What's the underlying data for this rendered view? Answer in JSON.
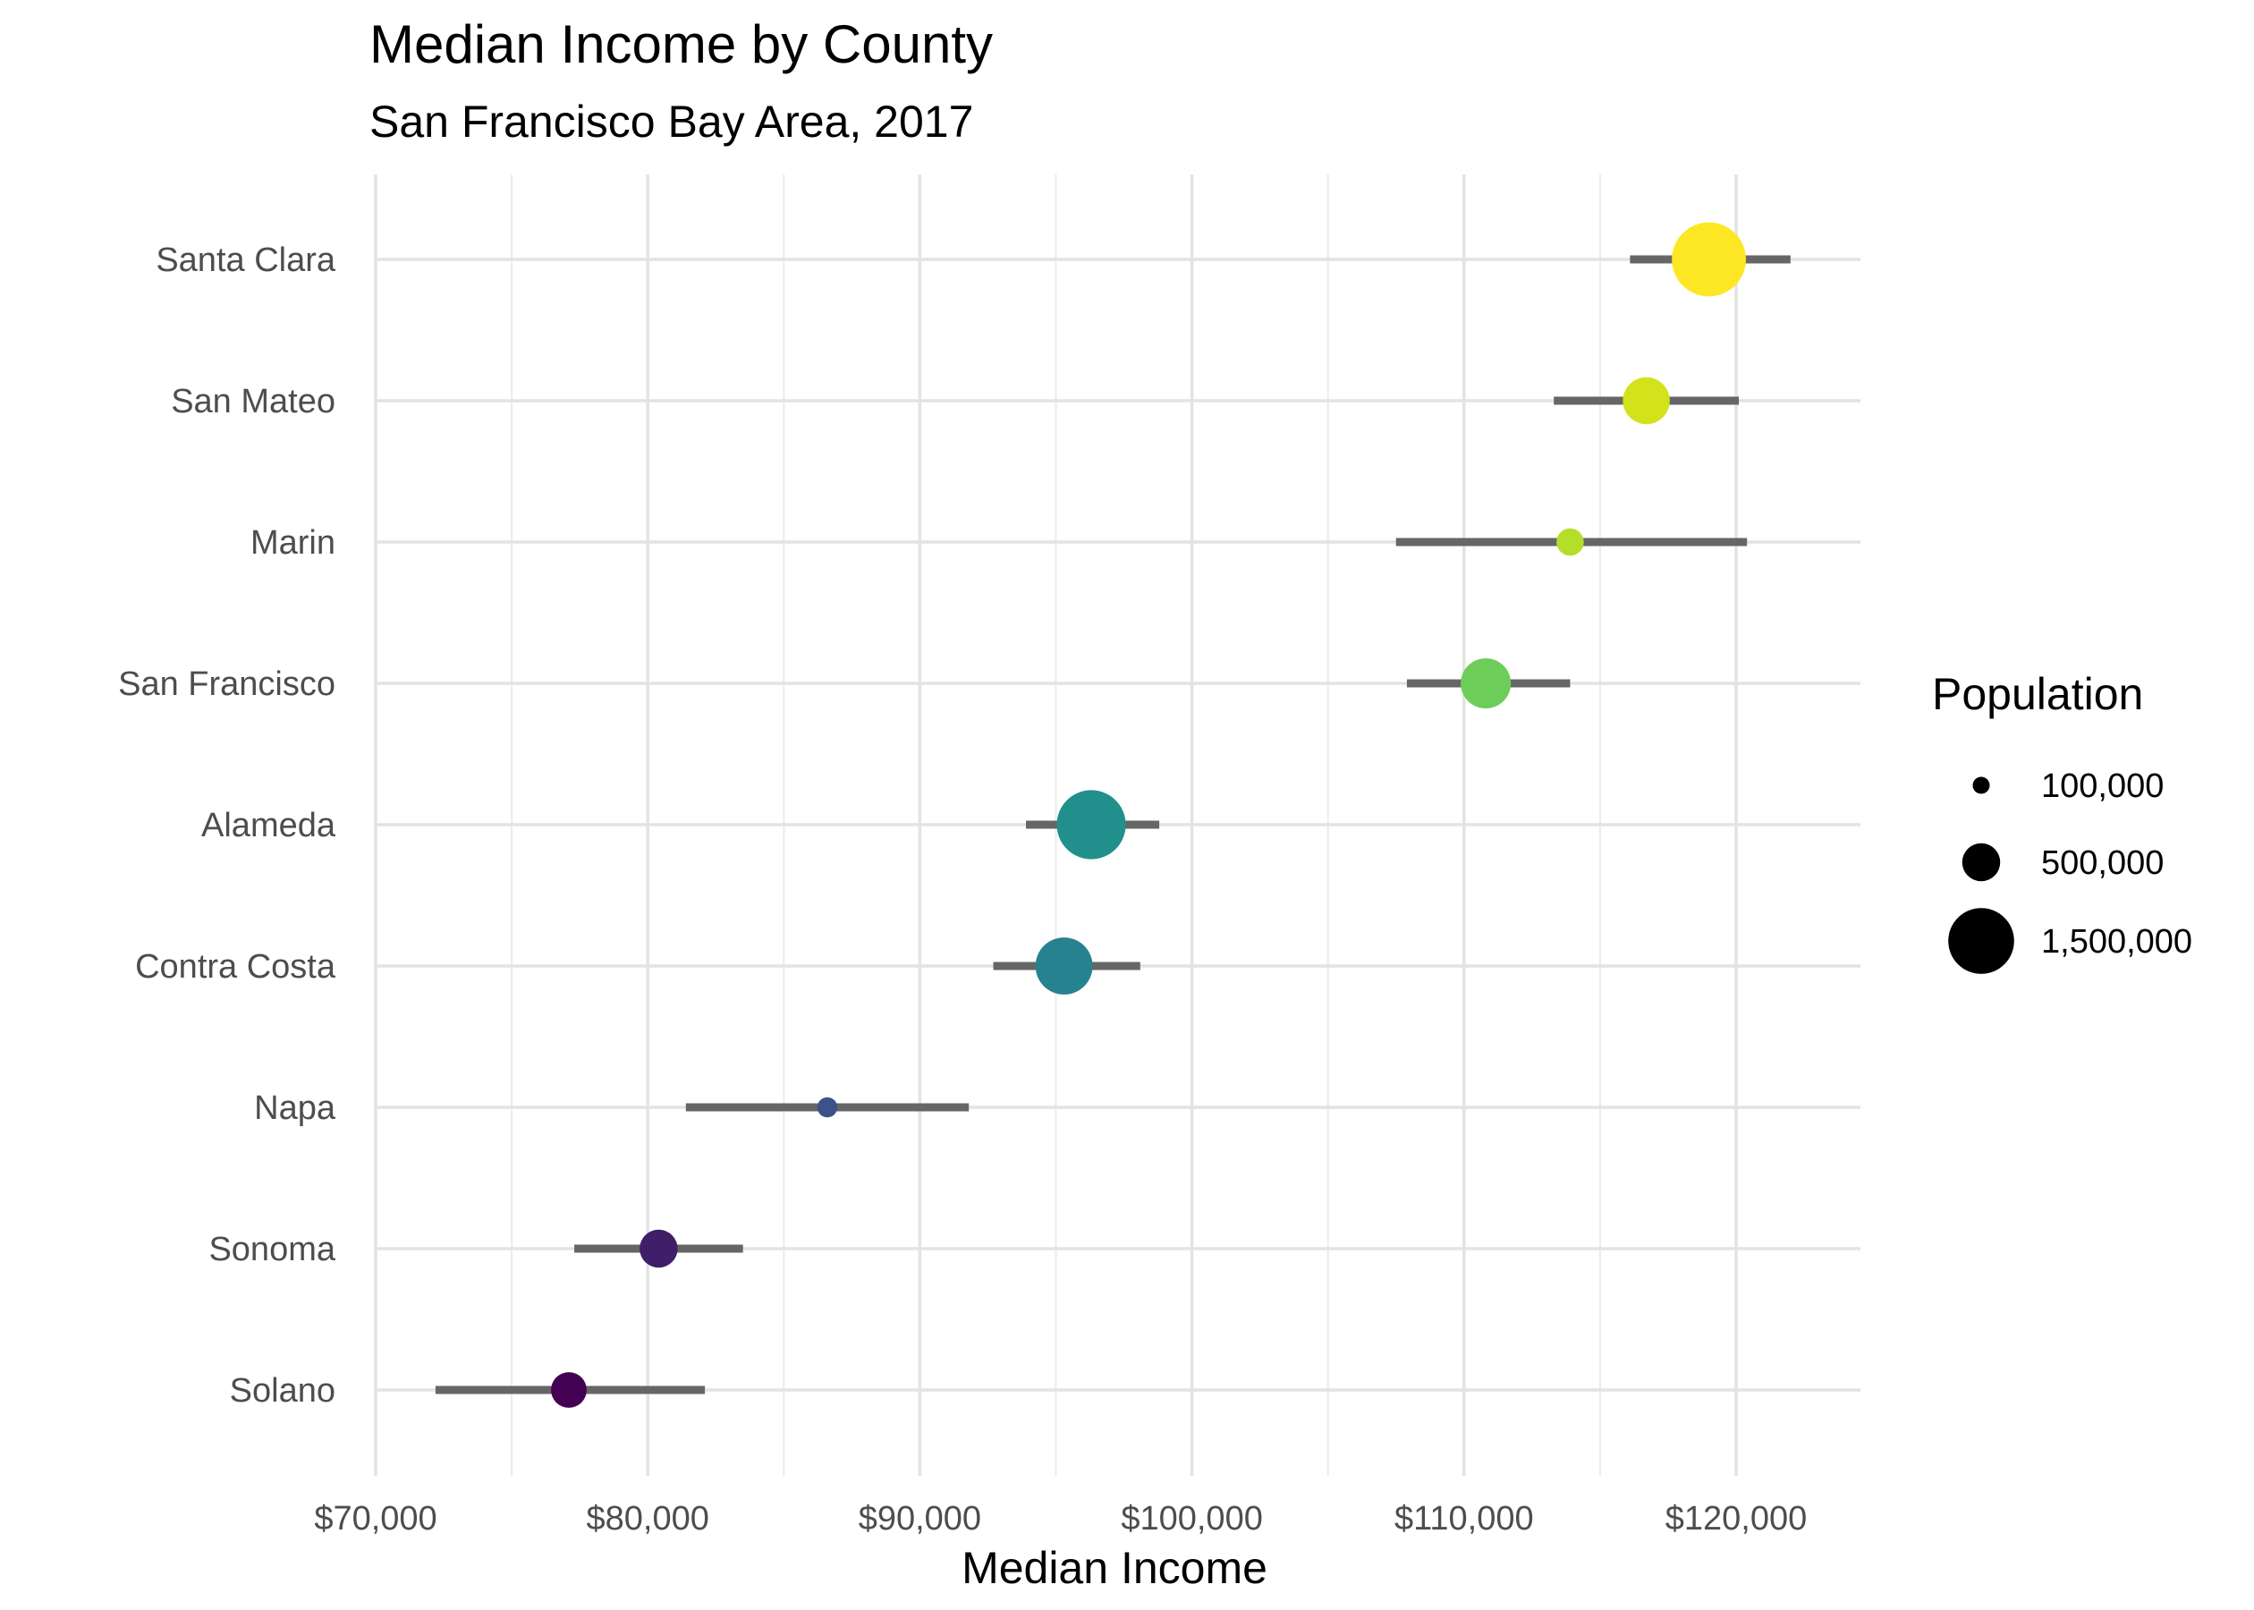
{
  "chart_data": {
    "type": "scatter",
    "title": "Median Income by County",
    "subtitle": "San Francisco Bay Area, 2017",
    "xlabel": "Median Income",
    "ylabel": "",
    "xlim": [
      70000,
      125000
    ],
    "x_ticks": [
      70000,
      80000,
      90000,
      100000,
      110000,
      120000
    ],
    "x_tick_labels": [
      "$70,000",
      "$80,000",
      "$90,000",
      "$100,000",
      "$110,000",
      "$120,000"
    ],
    "grid": true,
    "legend_position": "right",
    "legend_title": "Population",
    "legend_items": [
      {
        "label": "100,000",
        "value": 100000
      },
      {
        "label": "500,000",
        "value": 500000
      },
      {
        "label": "1,500,000",
        "value": 1500000
      }
    ],
    "color_scale": "viridis",
    "error_bar_color": "#666666",
    "counties": [
      {
        "name": "Santa Clara",
        "median_income": 119000,
        "low": 116100,
        "high": 122000,
        "population": 1900000,
        "color": "#FDE725"
      },
      {
        "name": "San Mateo",
        "median_income": 116700,
        "low": 113300,
        "high": 120100,
        "population": 760000,
        "color": "#D2E21B"
      },
      {
        "name": "Marin",
        "median_income": 113900,
        "low": 107500,
        "high": 120400,
        "population": 258000,
        "color": "#B5DE2B"
      },
      {
        "name": "San Francisco",
        "median_income": 110800,
        "low": 107900,
        "high": 113900,
        "population": 870000,
        "color": "#6DCD59"
      },
      {
        "name": "Alameda",
        "median_income": 96300,
        "low": 93900,
        "high": 98800,
        "population": 1650000,
        "color": "#21908C"
      },
      {
        "name": "Contra Costa",
        "median_income": 95300,
        "low": 92700,
        "high": 98100,
        "population": 1130000,
        "color": "#26828E"
      },
      {
        "name": "Napa",
        "median_income": 86600,
        "low": 81400,
        "high": 91800,
        "population": 140000,
        "color": "#3B528B"
      },
      {
        "name": "Sonoma",
        "median_income": 80400,
        "low": 77300,
        "high": 83500,
        "population": 500000,
        "color": "#3E1F68"
      },
      {
        "name": "Solano",
        "median_income": 77100,
        "low": 72200,
        "high": 82100,
        "population": 440000,
        "color": "#440154"
      }
    ]
  }
}
